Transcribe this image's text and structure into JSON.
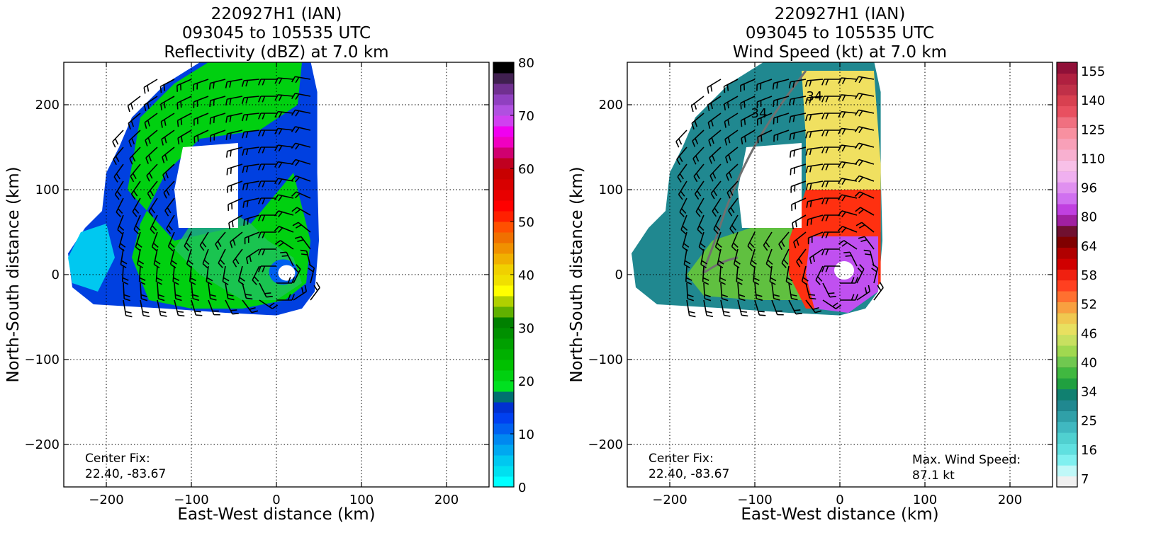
{
  "chart_data": [
    {
      "type": "heatmap",
      "title_lines": [
        "220927H1 (IAN)",
        "093045 to 105535 UTC",
        "Reflectivity (dBZ) at 7.0 km"
      ],
      "xlabel": "East-West distance (km)",
      "ylabel": "North-South distance (km)",
      "xlim": [
        -250,
        250
      ],
      "ylim": [
        -250,
        250
      ],
      "x_ticks": [
        -200,
        -100,
        0,
        100,
        200
      ],
      "y_ticks": [
        -200,
        -100,
        0,
        100,
        200
      ],
      "x_tick_labels": [
        "−200",
        "−100",
        "0",
        "100",
        "200"
      ],
      "y_tick_labels": [
        "−200",
        "−100",
        "0",
        "100",
        "200"
      ],
      "grid": true,
      "annotation": [
        "Center Fix:",
        "22.40, -83.67"
      ],
      "colorbar": {
        "min": 0,
        "max": 80,
        "tick_values": [
          0,
          10,
          20,
          30,
          40,
          50,
          60,
          70,
          80
        ],
        "tick_labels": [
          "0",
          "10",
          "20",
          "30",
          "40",
          "50",
          "60",
          "70",
          "80"
        ],
        "colors": [
          "#00ffff",
          "#00e0f0",
          "#00c8f0",
          "#00a8f0",
          "#0088f0",
          "#0060f0",
          "#0040f0",
          "#0030d0",
          "#007070",
          "#00e020",
          "#00d010",
          "#00c000",
          "#00b000",
          "#00a000",
          "#009000",
          "#008000",
          "#60b000",
          "#b0d000",
          "#ffff00",
          "#f0e000",
          "#f0d000",
          "#f0b000",
          "#f09000",
          "#f07000",
          "#ff5000",
          "#ff2000",
          "#ff0000",
          "#e80000",
          "#d80000",
          "#c80000",
          "#c00020",
          "#d00070",
          "#f000c0",
          "#f000f0",
          "#d040f0",
          "#b050e0",
          "#9040c0",
          "#703090",
          "#402050",
          "#000000"
        ]
      },
      "field_colors": {
        "high": "#00d010",
        "mid": "#20c060",
        "low": "#0040e0",
        "edge": "#00c8f0",
        "echo": "#0060f0"
      }
    },
    {
      "type": "heatmap",
      "title_lines": [
        "220927H1 (IAN)",
        "093045 to 105535 UTC",
        "Wind Speed (kt) at 7.0 km"
      ],
      "xlabel": "East-West distance (km)",
      "ylabel": "North-South distance (km)",
      "xlim": [
        -250,
        250
      ],
      "ylim": [
        -250,
        250
      ],
      "x_ticks": [
        -200,
        -100,
        0,
        100,
        200
      ],
      "y_ticks": [
        -200,
        -100,
        0,
        100,
        200
      ],
      "x_tick_labels": [
        "−200",
        "−100",
        "0",
        "100",
        "200"
      ],
      "y_tick_labels": [
        "−200",
        "−100",
        "0",
        "100",
        "200"
      ],
      "grid": true,
      "annotation": [
        "Center Fix:",
        "22.40, -83.67"
      ],
      "max_wind_annotation": [
        "Max. Wind Speed:",
        "87.1 kt"
      ],
      "contour_labels": [
        "34",
        "34"
      ],
      "colorbar": {
        "tick_labels": [
          "7",
          "16",
          "25",
          "34",
          "40",
          "46",
          "52",
          "58",
          "64",
          "80",
          "96",
          "110",
          "125",
          "140",
          "155"
        ],
        "colors": [
          "#f0f0f0",
          "#c0f8f8",
          "#80f0f0",
          "#60e0e0",
          "#50d0d0",
          "#40b8c0",
          "#30a0a8",
          "#208890",
          "#108070",
          "#20a040",
          "#40b840",
          "#70c850",
          "#a0d850",
          "#c8e060",
          "#e8e060",
          "#f0c850",
          "#f8a040",
          "#ff7030",
          "#ff4020",
          "#f02010",
          "#d00000",
          "#b00000",
          "#800000",
          "#701030",
          "#a020a0",
          "#c040e0",
          "#d070f0",
          "#e090f0",
          "#f0b0f0",
          "#f8c0e8",
          "#f8b0d0",
          "#f8a0b8",
          "#f890a0",
          "#f07080",
          "#e85060",
          "#d84050",
          "#c03048",
          "#b02040",
          "#901038"
        ]
      },
      "field_colors": {
        "low": "#208890",
        "mid": "#60c040",
        "high": "#f0e060",
        "hot": "#ff3010",
        "core": "#c050f0"
      }
    }
  ]
}
